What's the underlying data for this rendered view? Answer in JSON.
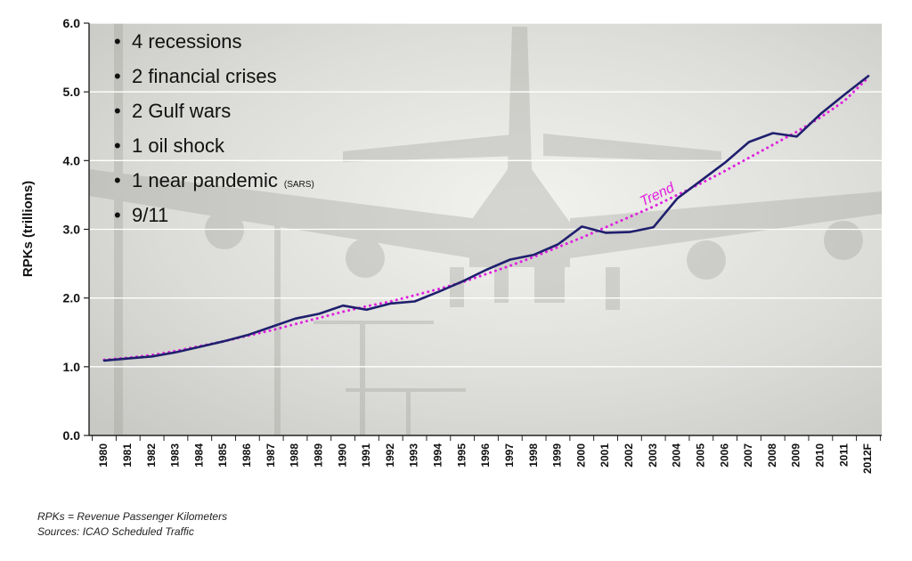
{
  "chart_data": {
    "type": "line",
    "title": "",
    "ylabel": "RPKs (trillions)",
    "xlabel": "",
    "ylim": [
      0,
      6
    ],
    "yticks": [
      "0.0",
      "1.0",
      "2.0",
      "3.0",
      "4.0",
      "5.0",
      "6.0"
    ],
    "grid": true,
    "categories": [
      "1980",
      "1981",
      "1982",
      "1983",
      "1984",
      "1985",
      "1986",
      "1987",
      "1988",
      "1989",
      "1990",
      "1991",
      "1992",
      "1993",
      "1994",
      "1995",
      "1996",
      "1997",
      "1998",
      "1999",
      "2000",
      "2001",
      "2002",
      "2003",
      "2004",
      "2005",
      "2006",
      "2007",
      "2008",
      "2009",
      "2010",
      "2011",
      "2012F"
    ],
    "series": [
      {
        "name": "",
        "style": "solid",
        "color": "#1f1f6e",
        "values": [
          1.09,
          1.12,
          1.15,
          1.21,
          1.29,
          1.37,
          1.46,
          1.58,
          1.7,
          1.77,
          1.89,
          1.83,
          1.92,
          1.95,
          2.09,
          2.24,
          2.41,
          2.56,
          2.63,
          2.78,
          3.04,
          2.95,
          2.96,
          3.03,
          3.45,
          3.71,
          3.97,
          4.27,
          4.4,
          4.35,
          4.68,
          4.96,
          5.23
        ]
      },
      {
        "name": "Trend",
        "style": "dotted",
        "color": "#e020e0",
        "values": [
          1.1,
          1.13,
          1.17,
          1.23,
          1.3,
          1.37,
          1.45,
          1.53,
          1.62,
          1.71,
          1.8,
          1.88,
          1.95,
          2.04,
          2.13,
          2.23,
          2.35,
          2.47,
          2.6,
          2.74,
          2.88,
          3.03,
          3.18,
          3.33,
          3.5,
          3.67,
          3.85,
          4.04,
          4.23,
          4.42,
          4.63,
          4.87,
          5.21
        ]
      }
    ],
    "annotations": [
      {
        "type": "bullet",
        "text": "4 recessions"
      },
      {
        "type": "bullet",
        "text": "2 financial crises"
      },
      {
        "type": "bullet",
        "text": "2 Gulf wars"
      },
      {
        "type": "bullet",
        "text": "1 oil shock"
      },
      {
        "type": "bullet",
        "text": "1 near pandemic",
        "small": "(SARS)"
      },
      {
        "type": "bullet",
        "text": "9/11"
      },
      {
        "type": "series-label",
        "text": "Trend",
        "color": "#e020e0"
      }
    ]
  },
  "footnotes": [
    "RPKs = Revenue Passenger Kilometers",
    "Sources: ICAO Scheduled Traffic"
  ]
}
